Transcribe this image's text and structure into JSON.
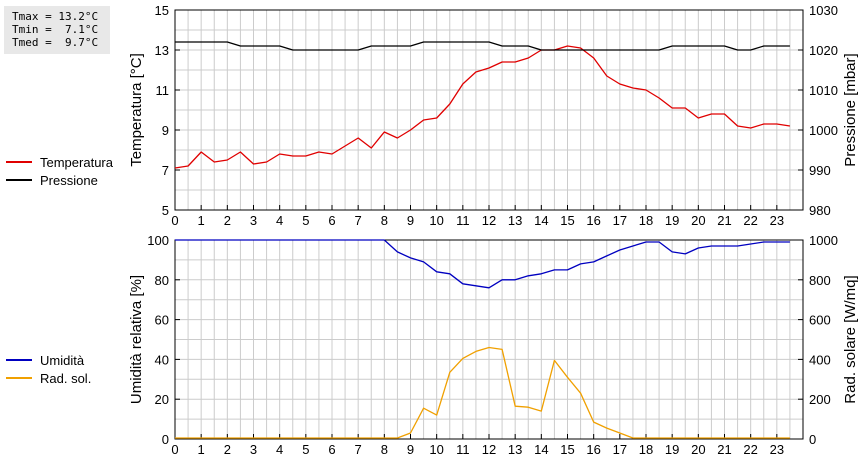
{
  "stats": {
    "tmax": "Tmax = 13.2°C",
    "tmin": "Tmin =  7.1°C",
    "tmed": "Tmed =  9.7°C"
  },
  "colors": {
    "temperature": "#e00000",
    "pressure": "#000000",
    "humidity": "#0000c0",
    "radiation": "#f0a000",
    "grid": "#cccccc"
  },
  "legends": {
    "top": [
      {
        "label": "Temperatura",
        "color": "#e00000"
      },
      {
        "label": "Pressione",
        "color": "#000000"
      }
    ],
    "bottom": [
      {
        "label": "Umidità",
        "color": "#0000c0"
      },
      {
        "label": "Rad. sol.",
        "color": "#f0a000"
      }
    ]
  },
  "chart_data": [
    {
      "type": "line",
      "ylabel": "Temperatura [°C]",
      "y2label": "Pressione [mbar]",
      "xlim": [
        0,
        24
      ],
      "ylim": [
        5,
        15
      ],
      "y2lim": [
        980,
        1030
      ],
      "xticks": [
        0,
        1,
        2,
        3,
        4,
        5,
        6,
        7,
        8,
        9,
        10,
        11,
        12,
        13,
        14,
        15,
        16,
        17,
        18,
        19,
        20,
        21,
        22,
        23
      ],
      "yticks": [
        5,
        7,
        9,
        11,
        13,
        15
      ],
      "y2ticks": [
        980,
        990,
        1000,
        1010,
        1020,
        1030
      ],
      "grid": true,
      "series": [
        {
          "name": "Temperatura",
          "axis": "left",
          "x": [
            0,
            0.5,
            1,
            1.5,
            2,
            2.5,
            3,
            3.5,
            4,
            4.5,
            5,
            5.5,
            6,
            6.5,
            7,
            7.5,
            8,
            8.5,
            9,
            9.5,
            10,
            10.5,
            11,
            11.5,
            12,
            12.5,
            13,
            13.5,
            14,
            14.5,
            15,
            15.5,
            16,
            16.5,
            17,
            17.5,
            18,
            18.5,
            19,
            19.5,
            20,
            20.5,
            21,
            21.5,
            22,
            22.5,
            23,
            23.5
          ],
          "y": [
            7.1,
            7.2,
            7.9,
            7.4,
            7.5,
            7.9,
            7.3,
            7.4,
            7.8,
            7.7,
            7.7,
            7.9,
            7.8,
            8.2,
            8.6,
            8.1,
            8.9,
            8.6,
            9.0,
            9.5,
            9.6,
            10.3,
            11.3,
            11.9,
            12.1,
            12.4,
            12.4,
            12.6,
            13.0,
            13.0,
            13.2,
            13.1,
            12.6,
            11.7,
            11.3,
            11.1,
            11.0,
            10.6,
            10.1,
            10.1,
            9.6,
            9.8,
            9.8,
            9.2,
            9.1,
            9.3,
            9.3,
            9.2
          ]
        },
        {
          "name": "Pressione",
          "axis": "right",
          "x": [
            0,
            0.5,
            1,
            1.5,
            2,
            2.5,
            3,
            3.5,
            4,
            4.5,
            5,
            5.5,
            6,
            6.5,
            7,
            7.5,
            8,
            8.5,
            9,
            9.5,
            10,
            10.5,
            11,
            11.5,
            12,
            12.5,
            13,
            13.5,
            14,
            14.5,
            15,
            15.5,
            16,
            16.5,
            17,
            17.5,
            18,
            18.5,
            19,
            19.5,
            20,
            20.5,
            21,
            21.5,
            22,
            22.5,
            23,
            23.5
          ],
          "y": [
            1022,
            1022,
            1022,
            1022,
            1022,
            1021,
            1021,
            1021,
            1021,
            1020,
            1020,
            1020,
            1020,
            1020,
            1020,
            1021,
            1021,
            1021,
            1021,
            1022,
            1022,
            1022,
            1022,
            1022,
            1022,
            1021,
            1021,
            1021,
            1020,
            1020,
            1020,
            1020,
            1020,
            1020,
            1020,
            1020,
            1020,
            1020,
            1021,
            1021,
            1021,
            1021,
            1021,
            1020,
            1020,
            1021,
            1021,
            1021
          ]
        }
      ]
    },
    {
      "type": "line",
      "ylabel": "Umidità relativa [%]",
      "y2label": "Rad. solare [W/mq]",
      "xlim": [
        0,
        24
      ],
      "ylim": [
        0,
        100
      ],
      "y2lim": [
        0,
        1000
      ],
      "xticks": [
        0,
        1,
        2,
        3,
        4,
        5,
        6,
        7,
        8,
        9,
        10,
        11,
        12,
        13,
        14,
        15,
        16,
        17,
        18,
        19,
        20,
        21,
        22,
        23
      ],
      "yticks": [
        0,
        20,
        40,
        60,
        80,
        100
      ],
      "y2ticks": [
        0,
        200,
        400,
        600,
        800,
        1000
      ],
      "grid": true,
      "series": [
        {
          "name": "Umidità",
          "axis": "left",
          "x": [
            0,
            0.5,
            1,
            1.5,
            2,
            2.5,
            3,
            3.5,
            4,
            4.5,
            5,
            5.5,
            6,
            6.5,
            7,
            7.5,
            8,
            8.5,
            9,
            9.5,
            10,
            10.5,
            11,
            11.5,
            12,
            12.5,
            13,
            13.5,
            14,
            14.5,
            15,
            15.5,
            16,
            16.5,
            17,
            17.5,
            18,
            18.5,
            19,
            19.5,
            20,
            20.5,
            21,
            21.5,
            22,
            22.5,
            23,
            23.5
          ],
          "y": [
            100,
            100,
            100,
            100,
            100,
            100,
            100,
            100,
            100,
            100,
            100,
            100,
            100,
            100,
            100,
            100,
            100,
            94,
            91,
            89,
            84,
            83,
            78,
            77,
            76,
            80,
            80,
            82,
            83,
            85,
            85,
            88,
            89,
            92,
            95,
            97,
            99,
            99,
            94,
            93,
            96,
            97,
            97,
            97,
            98,
            99,
            99,
            99
          ]
        },
        {
          "name": "Rad. sol.",
          "axis": "right",
          "x": [
            0,
            0.5,
            1,
            1.5,
            2,
            2.5,
            3,
            3.5,
            4,
            4.5,
            5,
            5.5,
            6,
            6.5,
            7,
            7.5,
            8,
            8.5,
            9,
            9.5,
            10,
            10.5,
            11,
            11.5,
            12,
            12.5,
            13,
            13.5,
            14,
            14.5,
            15,
            15.5,
            16,
            16.5,
            17,
            17.5,
            18,
            18.5,
            19,
            19.5,
            20,
            20.5,
            21,
            21.5,
            22,
            22.5,
            23,
            23.5
          ],
          "y": [
            5,
            5,
            5,
            5,
            5,
            5,
            5,
            5,
            5,
            5,
            5,
            5,
            5,
            5,
            5,
            5,
            5,
            5,
            30,
            155,
            120,
            335,
            405,
            440,
            460,
            450,
            165,
            160,
            140,
            395,
            310,
            230,
            85,
            55,
            30,
            5,
            5,
            5,
            5,
            5,
            5,
            5,
            5,
            5,
            5,
            5,
            5,
            5
          ]
        }
      ]
    }
  ]
}
